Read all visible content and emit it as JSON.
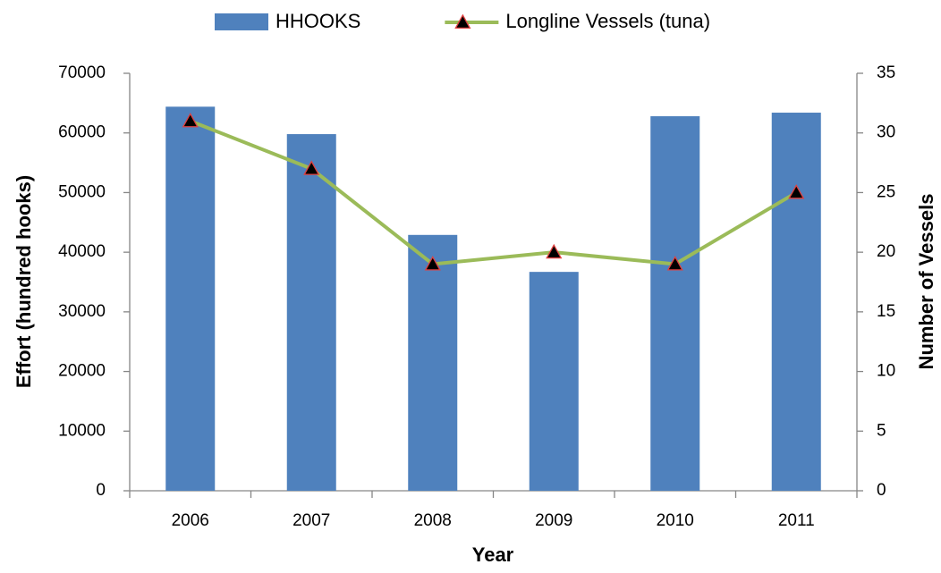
{
  "chart_data": {
    "type": "bar",
    "x_label": "Year",
    "y_label": "Effort (hundred hooks)",
    "y2_label": "Number of Vessels",
    "categories": [
      "2006",
      "2007",
      "2008",
      "2009",
      "2010",
      "2011"
    ],
    "series": [
      {
        "name": "HHOOKS",
        "type": "bar",
        "color": "#4f81bd",
        "values": [
          64400,
          59800,
          42900,
          36700,
          62800,
          63400
        ]
      },
      {
        "name": "Longline Vessels (tuna)",
        "type": "line",
        "axis": "y2",
        "color": "#9bbb59",
        "marker_color": "#000000",
        "marker_edge": "#e04040",
        "values": [
          31,
          27,
          19,
          20,
          19,
          25
        ]
      }
    ],
    "ylim": [
      0,
      70000
    ],
    "yticks": [
      0,
      10000,
      20000,
      30000,
      40000,
      50000,
      60000,
      70000
    ],
    "y2lim": [
      0,
      35
    ],
    "y2ticks": [
      0,
      5,
      10,
      15,
      20,
      25,
      30,
      35
    ],
    "grid": false,
    "legend": "top"
  }
}
